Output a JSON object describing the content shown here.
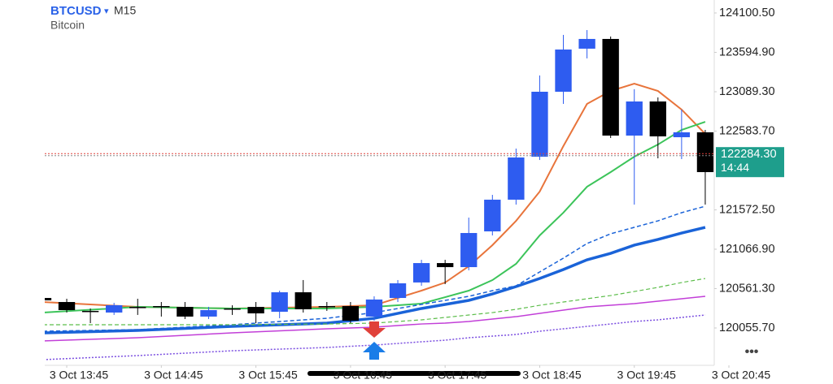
{
  "chart_data": {
    "type": "candlestick",
    "title": "BTCUSD",
    "timeframe": "M15",
    "subtitle": "Bitcoin",
    "categories": [
      null,
      null,
      null,
      null,
      null,
      null,
      null,
      null,
      null,
      null,
      null,
      null,
      null,
      null,
      null,
      null,
      null,
      null,
      null,
      null,
      null,
      null,
      null,
      null,
      null,
      null,
      null,
      null,
      null
    ],
    "open": [
      120441,
      120389,
      120275,
      120254,
      120326,
      120337,
      120326,
      120202,
      120306,
      120326,
      120264,
      120514,
      120337,
      120337,
      120202,
      120441,
      120640,
      120889,
      120837,
      121296,
      121703,
      122255,
      123089,
      123642,
      123767,
      122526,
      122964,
      122505,
      122568
    ],
    "high": [
      120462,
      120431,
      120306,
      120379,
      120431,
      120389,
      120389,
      120327,
      120347,
      120389,
      120535,
      120671,
      120389,
      120389,
      120462,
      120671,
      120931,
      120931,
      121473,
      121765,
      122359,
      123298,
      123819,
      123881,
      123798,
      123121,
      123016,
      122860,
      122599
    ],
    "low": [
      120389,
      120254,
      120118,
      120223,
      120223,
      120202,
      120170,
      120170,
      120223,
      120118,
      120181,
      120254,
      120275,
      120118,
      120149,
      120389,
      120598,
      120619,
      120796,
      121244,
      121640,
      122213,
      122933,
      123517,
      122495,
      121640,
      122234,
      122224,
      121640
    ],
    "close": [
      120410,
      120285,
      120264,
      120348,
      120316,
      120326,
      120202,
      120285,
      120296,
      120243,
      120514,
      120296,
      120326,
      120149,
      120421,
      120629,
      120889,
      120837,
      121275,
      121703,
      122245,
      123089,
      123631,
      123767,
      122526,
      122964,
      122516,
      122568,
      122057
    ],
    "up_color": "#2e5cf0",
    "down_color": "#000000",
    "lines": [
      {
        "color": "#e8743b",
        "dash": "solid",
        "width": 2,
        "x": [
          0,
          4,
          8,
          12,
          14,
          16,
          17,
          18,
          19,
          20,
          21,
          22,
          23,
          24,
          25,
          26,
          27,
          28
        ],
        "values": [
          120389,
          120326,
          120306,
          120326,
          120347,
          120535,
          120639,
          120848,
          121119,
          121431,
          121807,
          122391,
          122933,
          123099,
          123193,
          123099,
          122860,
          122547
        ]
      },
      {
        "color": "#3cc45a",
        "dash": "solid",
        "width": 2,
        "x": [
          0,
          4,
          8,
          12,
          14,
          16,
          17,
          18,
          19,
          20,
          21,
          22,
          23,
          24,
          25,
          26,
          27,
          28
        ],
        "values": [
          120253,
          120326,
          120306,
          120306,
          120326,
          120368,
          120451,
          120535,
          120670,
          120879,
          121244,
          121536,
          121869,
          122057,
          122255,
          122411,
          122599,
          122703
        ]
      },
      {
        "color": "#1a63d8",
        "dash": "solid",
        "width": 3.5,
        "x": [
          0,
          4,
          8,
          12,
          14,
          16,
          17,
          18,
          19,
          20,
          21,
          22,
          23,
          24,
          25,
          26,
          27,
          28
        ],
        "values": [
          119993,
          120024,
          120076,
          120118,
          120180,
          120306,
          120358,
          120410,
          120493,
          120587,
          120691,
          120806,
          120931,
          121014,
          121119,
          121192,
          121275,
          121348
        ]
      },
      {
        "color": "#1a63d8",
        "dash": "dashed",
        "width": 1.5,
        "x": [
          0,
          4,
          8,
          12,
          14,
          16,
          17,
          18,
          19,
          20,
          21,
          22,
          23,
          24,
          25,
          26,
          27,
          28
        ],
        "values": [
          120014,
          120034,
          120097,
          120180,
          120253,
          120358,
          120410,
          120462,
          120535,
          120597,
          120775,
          120952,
          121140,
          121265,
          121348,
          121431,
          121536,
          121619
        ]
      },
      {
        "color": "#5cbd4a",
        "dash": "dashed",
        "width": 1.2,
        "x": [
          0,
          4,
          8,
          12,
          14,
          16,
          17,
          18,
          19,
          20,
          21,
          22,
          23,
          24,
          25,
          26,
          27,
          28
        ],
        "values": [
          120097,
          120097,
          120097,
          120107,
          120118,
          120160,
          120191,
          120222,
          120253,
          120295,
          120347,
          120389,
          120431,
          120472,
          120524,
          120577,
          120639,
          120691
        ]
      },
      {
        "color": "#c23fd8",
        "dash": "solid",
        "width": 1.5,
        "x": [
          0,
          4,
          8,
          12,
          14,
          16,
          17,
          18,
          19,
          20,
          21,
          22,
          23,
          24,
          25,
          26,
          27,
          28
        ],
        "values": [
          119889,
          119930,
          119993,
          120045,
          120066,
          120107,
          120118,
          120139,
          120170,
          120201,
          120243,
          120285,
          120326,
          120347,
          120368,
          120399,
          120431,
          120462
        ]
      },
      {
        "color": "#7a4de0",
        "dash": "dotted",
        "width": 1.5,
        "x": [
          0,
          4,
          8,
          12,
          14,
          16,
          17,
          18,
          19,
          20,
          21,
          22,
          23,
          24,
          25,
          26,
          27,
          28
        ],
        "values": [
          119649,
          119701,
          119763,
          119805,
          119836,
          119878,
          119899,
          119930,
          119951,
          119972,
          120014,
          120045,
          120076,
          120107,
          120139,
          120160,
          120191,
          120222
        ]
      }
    ],
    "xlim": [
      0.07,
      28.38
    ],
    "xticks": [
      {
        "value": 1,
        "label": "3 Oct 13:45"
      },
      {
        "value": 5,
        "label": "3 Oct 14:45"
      },
      {
        "value": 9,
        "label": "3 Oct 15:45"
      },
      {
        "value": 13,
        "label": "3 Oct 16:45"
      },
      {
        "value": 17,
        "label": "3 Oct 17:45"
      },
      {
        "value": 21,
        "label": "3 Oct 18:45"
      },
      {
        "value": 25,
        "label": "3 Oct 19:45"
      },
      {
        "value": 29,
        "label": "3 Oct 20:45"
      }
    ],
    "ylim": [
      119576,
      124267
    ],
    "yticks": [
      {
        "value": 124100.5,
        "label": "124100.50"
      },
      {
        "value": 123594.9,
        "label": "123594.90"
      },
      {
        "value": 123089.3,
        "label": "123089.30"
      },
      {
        "value": 122583.7,
        "label": "122583.70"
      },
      {
        "value": 121572.5,
        "label": "121572.50"
      },
      {
        "value": 121066.9,
        "label": "121066.90"
      },
      {
        "value": 120561.3,
        "label": "120561.30"
      },
      {
        "value": 120055.7,
        "label": "120055.70"
      }
    ],
    "price_line": {
      "value": 122284.3,
      "label": "122284.30"
    },
    "countdown": "14:44",
    "price_label_color": "#1e9e8c"
  }
}
